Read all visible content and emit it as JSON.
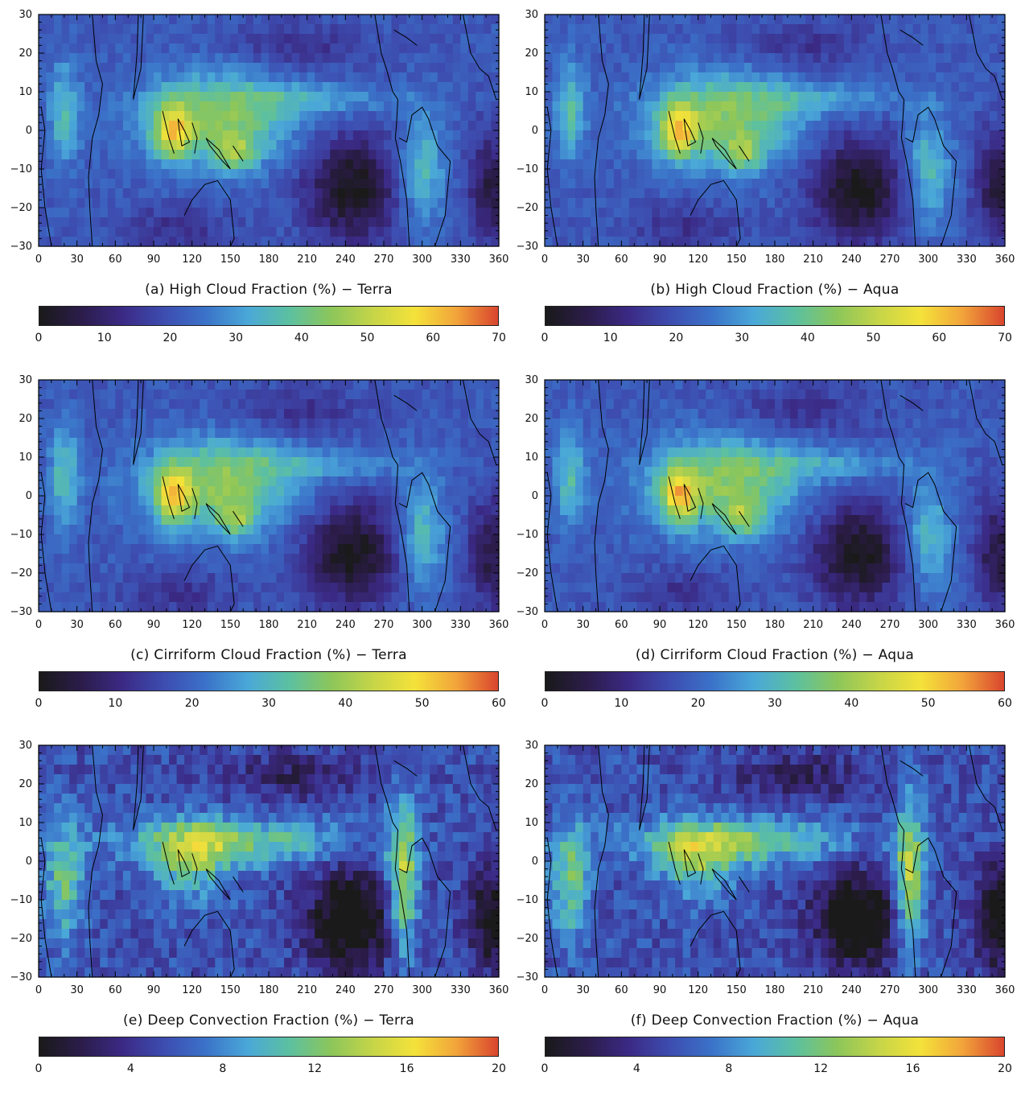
{
  "figure": {
    "panels": [
      {
        "id": "a",
        "caption": "(a) High Cloud Fraction (%) − Terra",
        "chart_data": {
          "type": "heatmap",
          "variable": "High Cloud Fraction (%)",
          "satellite": "Terra",
          "x_ticks": [
            "0",
            "30",
            "60",
            "90",
            "120",
            "150",
            "180",
            "210",
            "240",
            "270",
            "300",
            "330",
            "360"
          ],
          "y_ticks": [
            "30",
            "20",
            "10",
            "0",
            "−10",
            "−20",
            "−30"
          ],
          "xlim": [
            0,
            360
          ],
          "ylim": [
            -30,
            30
          ],
          "colorbar_ticks": [
            "0",
            "10",
            "20",
            "30",
            "40",
            "50",
            "60",
            "70"
          ],
          "colorbar_range": [
            0,
            70
          ]
        }
      },
      {
        "id": "b",
        "caption": "(b) High Cloud Fraction (%) − Aqua",
        "chart_data": {
          "type": "heatmap",
          "variable": "High Cloud Fraction (%)",
          "satellite": "Aqua",
          "x_ticks": [
            "0",
            "30",
            "60",
            "90",
            "120",
            "150",
            "180",
            "210",
            "240",
            "270",
            "300",
            "330",
            "360"
          ],
          "y_ticks": [
            "30",
            "20",
            "10",
            "0",
            "−10",
            "−20",
            "−30"
          ],
          "xlim": [
            0,
            360
          ],
          "ylim": [
            -30,
            30
          ],
          "colorbar_ticks": [
            "0",
            "10",
            "20",
            "30",
            "40",
            "50",
            "60",
            "70"
          ],
          "colorbar_range": [
            0,
            70
          ]
        }
      },
      {
        "id": "c",
        "caption": "(c) Cirriform Cloud Fraction (%) − Terra",
        "chart_data": {
          "type": "heatmap",
          "variable": "Cirriform Cloud Fraction (%)",
          "satellite": "Terra",
          "x_ticks": [
            "0",
            "30",
            "60",
            "90",
            "120",
            "150",
            "180",
            "210",
            "240",
            "270",
            "300",
            "330",
            "360"
          ],
          "y_ticks": [
            "30",
            "20",
            "10",
            "0",
            "−10",
            "−20",
            "−30"
          ],
          "xlim": [
            0,
            360
          ],
          "ylim": [
            -30,
            30
          ],
          "colorbar_ticks": [
            "0",
            "10",
            "20",
            "30",
            "40",
            "50",
            "60"
          ],
          "colorbar_range": [
            0,
            60
          ]
        }
      },
      {
        "id": "d",
        "caption": "(d) Cirriform Cloud Fraction (%) − Aqua",
        "chart_data": {
          "type": "heatmap",
          "variable": "Cirriform Cloud Fraction (%)",
          "satellite": "Aqua",
          "x_ticks": [
            "0",
            "30",
            "60",
            "90",
            "120",
            "150",
            "180",
            "210",
            "240",
            "270",
            "300",
            "330",
            "360"
          ],
          "y_ticks": [
            "30",
            "20",
            "10",
            "0",
            "−10",
            "−20",
            "−30"
          ],
          "xlim": [
            0,
            360
          ],
          "ylim": [
            -30,
            30
          ],
          "colorbar_ticks": [
            "0",
            "10",
            "20",
            "30",
            "40",
            "50",
            "60"
          ],
          "colorbar_range": [
            0,
            60
          ]
        }
      },
      {
        "id": "e",
        "caption": "(e) Deep Convection Fraction (%) − Terra",
        "chart_data": {
          "type": "heatmap",
          "variable": "Deep Convection Fraction (%)",
          "satellite": "Terra",
          "x_ticks": [
            "0",
            "30",
            "60",
            "90",
            "120",
            "150",
            "180",
            "210",
            "240",
            "270",
            "300",
            "330",
            "360"
          ],
          "y_ticks": [
            "30",
            "20",
            "10",
            "0",
            "−10",
            "−20",
            "−30"
          ],
          "xlim": [
            0,
            360
          ],
          "ylim": [
            -30,
            30
          ],
          "colorbar_ticks": [
            "0",
            "4",
            "8",
            "12",
            "16",
            "20"
          ],
          "colorbar_range": [
            0,
            20
          ]
        }
      },
      {
        "id": "f",
        "caption": "(f) Deep Convection Fraction (%) − Aqua",
        "chart_data": {
          "type": "heatmap",
          "variable": "Deep Convection Fraction (%)",
          "satellite": "Aqua",
          "x_ticks": [
            "0",
            "30",
            "60",
            "90",
            "120",
            "150",
            "180",
            "210",
            "240",
            "270",
            "300",
            "330",
            "360"
          ],
          "y_ticks": [
            "30",
            "20",
            "10",
            "0",
            "−10",
            "−20",
            "−30"
          ],
          "xlim": [
            0,
            360
          ],
          "ylim": [
            -30,
            30
          ],
          "colorbar_ticks": [
            "0",
            "4",
            "8",
            "12",
            "16",
            "20"
          ],
          "colorbar_range": [
            0,
            20
          ]
        }
      }
    ],
    "colormap": [
      "#1a1a1a",
      "#2b1c4a",
      "#3b2a85",
      "#3d4db0",
      "#3b73c9",
      "#4aa8d8",
      "#5cc0a0",
      "#8cc65a",
      "#c6d548",
      "#f4e23a",
      "#f2a43a",
      "#d9452e"
    ]
  }
}
